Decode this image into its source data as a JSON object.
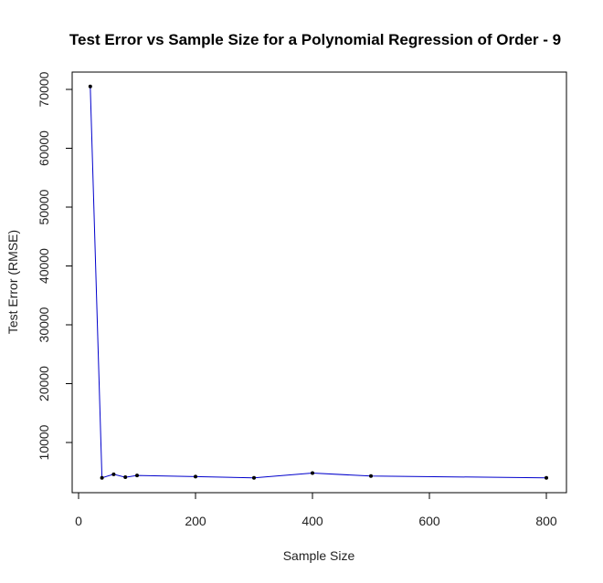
{
  "chart_data": {
    "type": "line",
    "title": "Test Error vs Sample Size for a Polynomial Regression of Order - 9",
    "xlabel": "Sample Size",
    "ylabel": "Test Error (RMSE)",
    "xlim": [
      0,
      820
    ],
    "ylim": [
      2000,
      72000
    ],
    "xticks": [
      0,
      200,
      400,
      600,
      800
    ],
    "xtick_labels": [
      "0",
      "200",
      "400",
      "600",
      "800"
    ],
    "yticks": [
      10000,
      20000,
      30000,
      40000,
      50000,
      60000,
      70000
    ],
    "ytick_labels": [
      "10000",
      "20000",
      "30000",
      "40000",
      "50000",
      "60000",
      "70000"
    ],
    "series": [
      {
        "x": [
          20,
          40,
          60,
          80,
          100,
          200,
          300,
          400,
          500,
          800
        ],
        "y": [
          70500,
          4000,
          4600,
          4100,
          4400,
          4200,
          4000,
          4800,
          4300,
          4000
        ],
        "line_color": "#0000cc",
        "marker_color": "#000000"
      }
    ],
    "grid": false,
    "legend": "none"
  }
}
